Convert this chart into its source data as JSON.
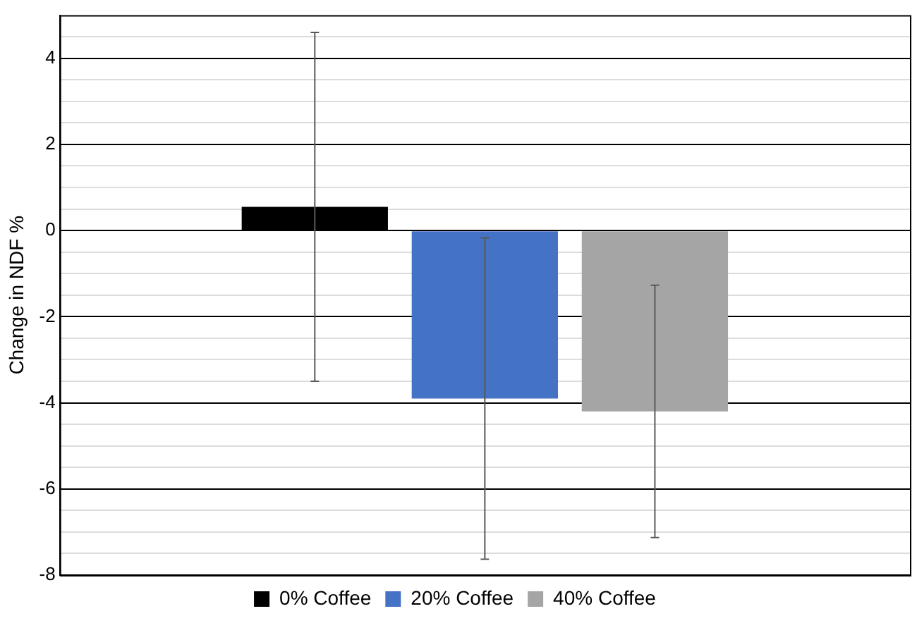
{
  "chart_data": {
    "type": "bar",
    "ylabel": "Change in NDF %",
    "categories": [
      null
    ],
    "series": [
      {
        "name": "0% Coffee",
        "color": "#000000",
        "values": [
          0.55
        ],
        "errors": [
          4.05
        ]
      },
      {
        "name": "20% Coffee",
        "color": "#4472c4",
        "values": [
          -3.9
        ],
        "errors": [
          3.73
        ]
      },
      {
        "name": "40% Coffee",
        "color": "#a5a5a5",
        "values": [
          -4.2
        ],
        "errors": [
          2.93
        ]
      }
    ],
    "ylim": [
      -8,
      5
    ],
    "yticks": [
      -8,
      {
        "value": -7.5,
        "label": null
      },
      {
        "value": -7,
        "label": null
      },
      {
        "value": -6.5,
        "label": null
      },
      -6,
      {
        "value": -5.5,
        "label": null
      },
      {
        "value": -5,
        "label": null
      },
      {
        "value": -4.5,
        "label": null
      },
      -4,
      {
        "value": -3.5,
        "label": null
      },
      {
        "value": -3,
        "label": null
      },
      {
        "value": -2.5,
        "label": null
      },
      -2,
      {
        "value": -1.5,
        "label": null
      },
      {
        "value": -1,
        "label": null
      },
      {
        "value": -0.5,
        "label": null
      },
      0,
      {
        "value": 0.5,
        "label": null
      },
      {
        "value": 1,
        "label": null
      },
      {
        "value": 1.5,
        "label": null
      },
      2,
      {
        "value": 2.5,
        "label": null
      },
      {
        "value": 3,
        "label": null
      },
      {
        "value": 3.5,
        "label": null
      },
      4,
      {
        "value": 4.5,
        "label": null
      }
    ],
    "grid": "y",
    "legend": "bottom"
  }
}
